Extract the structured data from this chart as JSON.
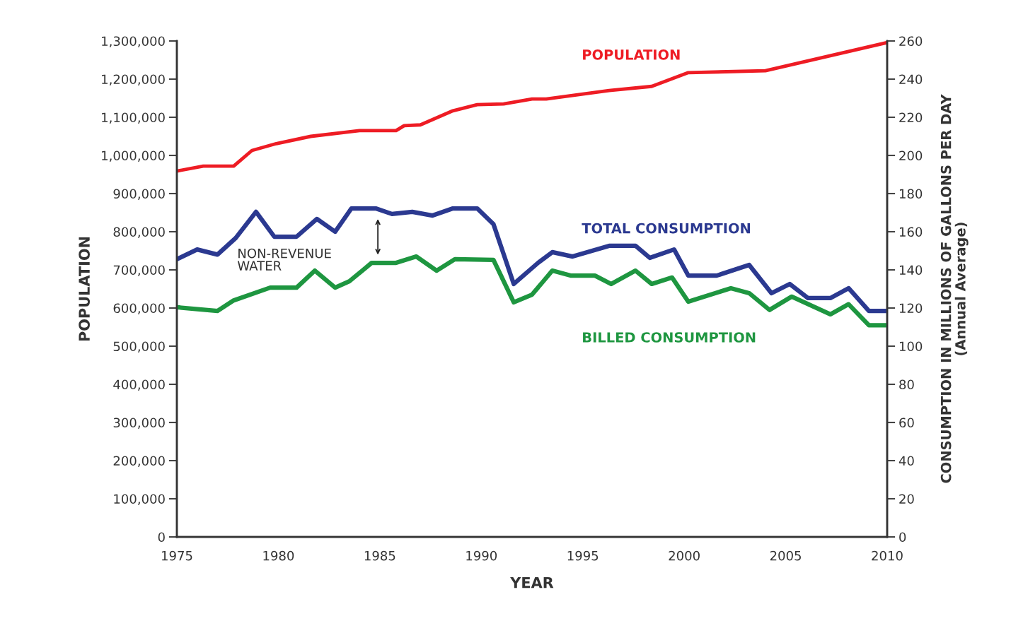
{
  "chart_data": {
    "type": "line",
    "xlabel": "YEAR",
    "ylabel": "POPULATION",
    "y2label": "CONSUMPTION IN MILLIONS OF GALLONS PER DAY\n(Annual Average)",
    "xlim": [
      1975,
      2010
    ],
    "xticks": [
      1975,
      1980,
      1985,
      1990,
      1995,
      2000,
      2005,
      2010
    ],
    "ylim": [
      0,
      1300000
    ],
    "yticks": [
      0,
      {
        "value": 100000,
        "label": "100,000"
      },
      {
        "value": 200000,
        "label": "200,000"
      },
      {
        "value": 300000,
        "label": "300,000"
      },
      {
        "value": 400000,
        "label": "400,000"
      },
      {
        "value": 500000,
        "label": "500,000"
      },
      {
        "value": 600000,
        "label": "600,000"
      },
      {
        "value": 700000,
        "label": "700,000"
      },
      {
        "value": 800000,
        "label": "800,000"
      },
      {
        "value": 900000,
        "label": "900,000"
      },
      {
        "value": 1000000,
        "label": "1,000,000"
      },
      {
        "value": 1100000,
        "label": "1,100,000"
      },
      {
        "value": 1200000,
        "label": "1,200,000"
      },
      {
        "value": 1300000,
        "label": "1,300,000"
      }
    ],
    "y2lim": [
      0,
      260
    ],
    "y2ticks": [
      0,
      20,
      40,
      60,
      80,
      100,
      120,
      140,
      160,
      180,
      200,
      220,
      240,
      260
    ],
    "grid": false,
    "legend": false,
    "marker": "none",
    "line_style": "solid",
    "annotations": [
      "NON-REVENUE\nWATER"
    ],
    "series": [
      {
        "name": "POPULATION",
        "color": "#ee1c24",
        "x": [
          1975,
          1976.3,
          1977.8,
          1978.7,
          1979.9,
          1981.6,
          1984.0,
          1985.8,
          1986.2,
          1987.0,
          1988.6,
          1989.8,
          1991.1,
          1992.5,
          1993.2,
          1996.3,
          1998.4,
          2000.2,
          2004.0,
          2010
        ],
        "values": [
          959000,
          972000,
          972000,
          1013000,
          1031000,
          1050000,
          1065000,
          1065000,
          1078000,
          1080000,
          1117000,
          1133000,
          1135000,
          1148000,
          1148000,
          1170000,
          1181000,
          1217000,
          1222000,
          1296000
        ]
      },
      {
        "name": "TOTAL CONSUMPTION",
        "color": "#2b3990",
        "axis": "y2",
        "x": [
          1975,
          1976.0,
          1977.0,
          1977.9,
          1978.9,
          1979.8,
          1980.9,
          1981.9,
          1982.8,
          1983.6,
          1984.8,
          1985.6,
          1986.6,
          1987.6,
          1988.6,
          1989.8,
          1990.6,
          1991.6,
          1992.8,
          1993.5,
          1994.5,
          1996.3,
          1997.6,
          1998.3,
          1999.5,
          2000.2,
          2001.6,
          2003.2,
          2004.3,
          2005.2,
          2006.1,
          2007.2,
          2008.1,
          2009.1,
          2010
        ],
        "values": [
          145.6,
          150.7,
          148,
          156.7,
          170.4,
          157.4,
          157.4,
          166.7,
          160,
          172.2,
          172.2,
          169.3,
          170.4,
          168.5,
          172.2,
          172.2,
          164,
          132.6,
          143.7,
          149.3,
          147,
          152.6,
          152.6,
          146.3,
          150.7,
          137,
          137,
          142.6,
          127.8,
          132.6,
          125.2,
          125.2,
          130.4,
          118.5,
          118.5
        ]
      },
      {
        "name": "BILLED CONSUMPTION",
        "color": "#1e9640",
        "axis": "y2",
        "x": [
          1975,
          1977.0,
          1977.8,
          1979.6,
          1980.9,
          1981.8,
          1982.8,
          1983.5,
          1984.6,
          1985.8,
          1986.8,
          1987.8,
          1988.7,
          1990.6,
          1991.6,
          1992.5,
          1993.5,
          1994.4,
          1995.6,
          1996.4,
          1997.6,
          1998.4,
          1999.4,
          2000.2,
          2002.3,
          2003.2,
          2004.2,
          2005.3,
          2007.2,
          2008.1,
          2009.1,
          2010
        ],
        "values": [
          120.4,
          118.5,
          124,
          130.7,
          130.7,
          139.6,
          130.7,
          134,
          143.7,
          143.7,
          147,
          139.6,
          145.6,
          145.2,
          123,
          127,
          139.6,
          137,
          137,
          132.6,
          139.6,
          132.6,
          136,
          123.3,
          130.4,
          127.8,
          119,
          126,
          116.7,
          122,
          111,
          111
        ]
      }
    ]
  }
}
